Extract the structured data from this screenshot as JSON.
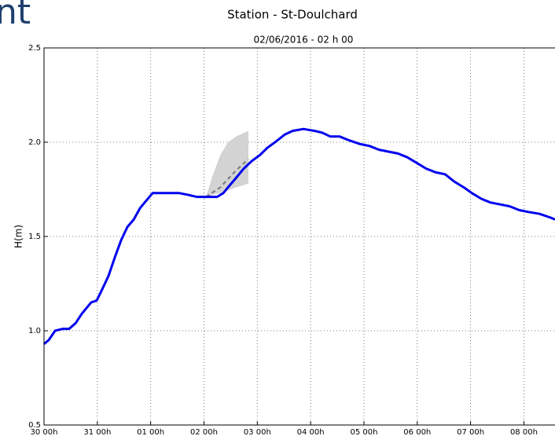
{
  "logo_text": "nt",
  "chart_data": {
    "type": "line",
    "title": "Station - St-Doulchard",
    "subtitle": "02/06/2016 - 02 h 00",
    "ylabel": "H(m)",
    "xlim": [
      0,
      230
    ],
    "ylim": [
      0.5,
      2.5
    ],
    "xticks": [
      {
        "value": 0,
        "label": "30 00h"
      },
      {
        "value": 24,
        "label": "31 00h"
      },
      {
        "value": 48,
        "label": "01 00h"
      },
      {
        "value": 72,
        "label": "02 00h"
      },
      {
        "value": 96,
        "label": "03 00h"
      },
      {
        "value": 120,
        "label": "04 00h"
      },
      {
        "value": 144,
        "label": "05 00h"
      },
      {
        "value": 168,
        "label": "06 00h"
      },
      {
        "value": 192,
        "label": "07 00h"
      },
      {
        "value": 216,
        "label": "08 00h"
      }
    ],
    "yticks": [
      0.5,
      {
        "value": 1,
        "label": "1.0"
      },
      1.5,
      {
        "value": 2,
        "label": "2.0"
      },
      2.5
    ],
    "grid": true,
    "band": {
      "color": "#d3d3d3",
      "x": [
        72.9,
        75.8,
        79.3,
        82.8,
        86.4,
        92
      ],
      "upper": [
        1.71,
        1.82,
        1.93,
        2.0,
        2.03,
        2.06
      ],
      "lower": [
        1.71,
        1.72,
        1.73,
        1.745,
        1.76,
        1.78
      ]
    },
    "series": [
      {
        "color": "#0000ee",
        "dashed": false,
        "width": 3,
        "x": [
          0,
          2.1,
          5,
          8.5,
          11.3,
          14.2,
          17,
          19.1,
          21.2,
          23.7,
          26.2,
          29,
          31.9,
          34.7,
          37.5,
          40.4,
          43.2,
          46,
          48.9,
          51,
          60.9,
          65.1,
          68.7,
          77.9,
          80.7,
          83.5,
          86.4,
          89.9,
          93.5,
          97,
          100.5,
          104,
          108.3,
          111.9,
          116.8,
          121.8,
          125.3,
          128.9,
          133.1,
          137.3,
          142.3,
          146.5,
          150.8,
          155,
          159.3,
          163.5,
          167.8,
          172,
          176.3,
          180.5,
          184.8,
          189,
          192.6,
          196.8,
          201,
          205.3,
          209.6,
          213.8,
          218,
          223,
          228,
          230
        ],
        "values": [
          0.93,
          0.95,
          1.0,
          1.01,
          1.01,
          1.04,
          1.09,
          1.12,
          1.15,
          1.16,
          1.22,
          1.29,
          1.39,
          1.48,
          1.55,
          1.59,
          1.65,
          1.69,
          1.73,
          1.73,
          1.73,
          1.72,
          1.71,
          1.71,
          1.73,
          1.77,
          1.81,
          1.86,
          1.9,
          1.93,
          1.97,
          2.0,
          2.04,
          2.06,
          2.07,
          2.06,
          2.05,
          2.03,
          2.03,
          2.01,
          1.99,
          1.98,
          1.96,
          1.95,
          1.94,
          1.92,
          1.89,
          1.86,
          1.84,
          1.83,
          1.79,
          1.76,
          1.73,
          1.7,
          1.68,
          1.67,
          1.66,
          1.64,
          1.63,
          1.62,
          1.6,
          1.59
        ]
      },
      {
        "color": "#777777",
        "dashed": true,
        "width": 2,
        "x": [
          72.9,
          79.3,
          86.4,
          92
        ],
        "values": [
          1.71,
          1.76,
          1.85,
          1.91
        ]
      }
    ]
  }
}
